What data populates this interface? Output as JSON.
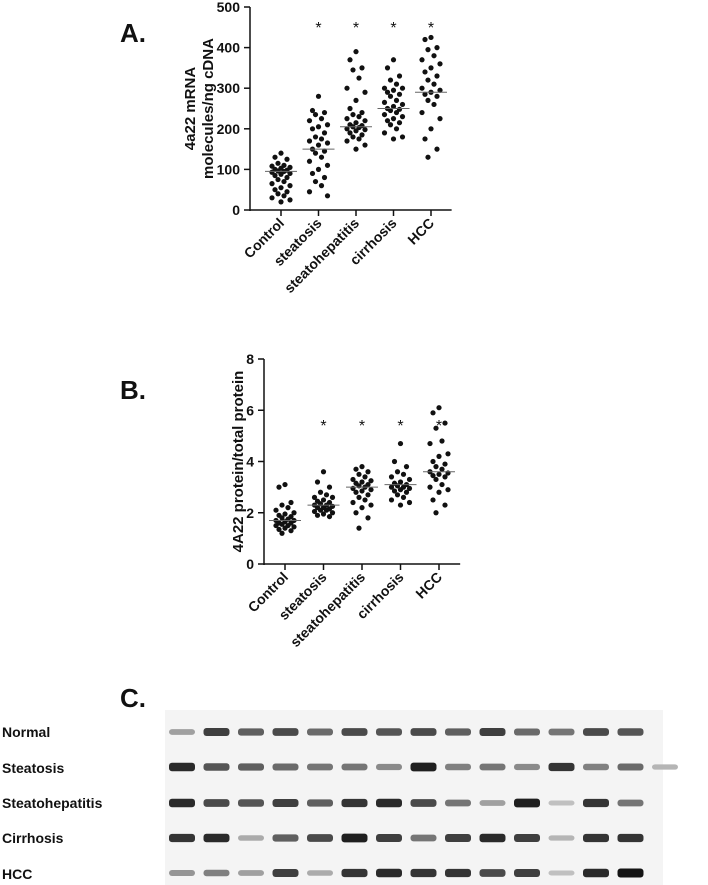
{
  "panels": {
    "a": {
      "letter": "A."
    },
    "b": {
      "letter": "B."
    },
    "c": {
      "letter": "C."
    }
  },
  "chart_data": [
    {
      "type": "scatter",
      "panel": "A.",
      "ylabel": "4a22 mRNA molecules/ng cDNA",
      "ylabel_lines": [
        "4a22 mRNA",
        "molecules/ng cDNA"
      ],
      "xlabel": "",
      "ylim": [
        0,
        500
      ],
      "yticks": [
        0,
        100,
        200,
        300,
        400,
        500
      ],
      "categories": [
        "Control",
        "steatosis",
        "steatohepatitis",
        "cirrhosis",
        "HCC"
      ],
      "significance": [
        "",
        "*",
        "*",
        "*",
        "*"
      ],
      "medians": [
        95,
        150,
        205,
        250,
        290
      ],
      "series": [
        {
          "values": [
            140,
            130,
            125,
            115,
            110,
            108,
            105,
            103,
            100,
            98,
            96,
            95,
            93,
            90,
            88,
            85,
            80,
            75,
            70,
            65,
            60,
            55,
            50,
            45,
            40,
            35,
            30,
            25,
            20
          ]
        },
        {
          "values": [
            280,
            245,
            240,
            235,
            225,
            220,
            210,
            205,
            200,
            190,
            180,
            175,
            170,
            165,
            160,
            150,
            145,
            140,
            130,
            120,
            110,
            100,
            90,
            80,
            70,
            60,
            45,
            35
          ]
        },
        {
          "values": [
            390,
            370,
            350,
            345,
            325,
            300,
            290,
            270,
            250,
            240,
            235,
            230,
            225,
            220,
            215,
            210,
            208,
            205,
            203,
            200,
            198,
            195,
            190,
            185,
            180,
            175,
            170,
            160,
            150
          ]
        },
        {
          "values": [
            370,
            350,
            330,
            320,
            310,
            300,
            300,
            295,
            290,
            285,
            280,
            270,
            265,
            260,
            255,
            250,
            248,
            245,
            240,
            235,
            230,
            225,
            220,
            215,
            210,
            200,
            190,
            180,
            175
          ]
        },
        {
          "values": [
            425,
            420,
            400,
            395,
            380,
            370,
            360,
            350,
            340,
            330,
            320,
            310,
            300,
            295,
            290,
            285,
            280,
            270,
            260,
            240,
            225,
            200,
            175,
            150,
            130
          ]
        }
      ]
    },
    {
      "type": "scatter",
      "panel": "B.",
      "ylabel": "4A22 protein/total protein",
      "xlabel": "",
      "ylim": [
        0,
        8
      ],
      "yticks": [
        0,
        2,
        4,
        6,
        8
      ],
      "categories": [
        "Control",
        "steatosis",
        "steatohepatitis",
        "cirrhosis",
        "HCC"
      ],
      "significance": [
        "",
        "*",
        "*",
        "*",
        "*"
      ],
      "medians": [
        1.7,
        2.3,
        3.0,
        3.1,
        3.6
      ],
      "series": [
        {
          "values": [
            3.1,
            3.0,
            2.4,
            2.3,
            2.2,
            2.1,
            2.0,
            1.95,
            1.9,
            1.85,
            1.8,
            1.75,
            1.7,
            1.7,
            1.65,
            1.6,
            1.6,
            1.55,
            1.5,
            1.5,
            1.45,
            1.4,
            1.35,
            1.3,
            1.2
          ]
        },
        {
          "values": [
            3.6,
            3.2,
            3.0,
            2.8,
            2.7,
            2.6,
            2.6,
            2.5,
            2.45,
            2.4,
            2.35,
            2.3,
            2.3,
            2.25,
            2.2,
            2.2,
            2.15,
            2.1,
            2.1,
            2.05,
            2.0,
            1.95,
            1.9,
            1.85
          ]
        },
        {
          "values": [
            3.8,
            3.7,
            3.6,
            3.5,
            3.4,
            3.3,
            3.25,
            3.2,
            3.15,
            3.1,
            3.05,
            3.0,
            2.95,
            2.9,
            2.85,
            2.8,
            2.7,
            2.6,
            2.5,
            2.4,
            2.3,
            2.2,
            2.0,
            1.8,
            1.4
          ]
        },
        {
          "values": [
            4.7,
            4.0,
            3.8,
            3.6,
            3.5,
            3.4,
            3.3,
            3.2,
            3.15,
            3.1,
            3.05,
            3.0,
            3.0,
            2.95,
            2.9,
            2.85,
            2.8,
            2.7,
            2.6,
            2.5,
            2.4,
            2.3
          ]
        },
        {
          "values": [
            6.1,
            5.9,
            5.5,
            5.3,
            4.8,
            4.7,
            4.3,
            4.2,
            4.0,
            3.9,
            3.8,
            3.7,
            3.6,
            3.55,
            3.5,
            3.45,
            3.4,
            3.3,
            3.1,
            3.0,
            2.9,
            2.8,
            2.5,
            2.3,
            2.0
          ]
        }
      ]
    }
  ],
  "blot": {
    "rows": [
      {
        "label": "Normal",
        "intensities": [
          0.35,
          0.8,
          0.65,
          0.75,
          0.6,
          0.75,
          0.7,
          0.75,
          0.65,
          0.8,
          0.6,
          0.55,
          0.75,
          0.7
        ]
      },
      {
        "label": "Steatosis",
        "intensities": [
          0.9,
          0.7,
          0.65,
          0.6,
          0.55,
          0.55,
          0.45,
          0.95,
          0.5,
          0.55,
          0.45,
          0.85,
          0.5,
          0.6,
          0.25
        ]
      },
      {
        "label": "Steatohepatitis",
        "intensities": [
          0.9,
          0.75,
          0.7,
          0.8,
          0.65,
          0.85,
          0.9,
          0.75,
          0.55,
          0.35,
          0.95,
          0.2,
          0.85,
          0.55
        ]
      },
      {
        "label": "Cirrhosis",
        "intensities": [
          0.85,
          0.9,
          0.3,
          0.65,
          0.75,
          0.95,
          0.8,
          0.55,
          0.8,
          0.9,
          0.8,
          0.25,
          0.85,
          0.85
        ]
      },
      {
        "label": "HCC",
        "intensities": [
          0.4,
          0.5,
          0.35,
          0.8,
          0.3,
          0.85,
          0.9,
          0.85,
          0.85,
          0.75,
          0.8,
          0.2,
          0.9,
          1.0
        ]
      }
    ]
  }
}
